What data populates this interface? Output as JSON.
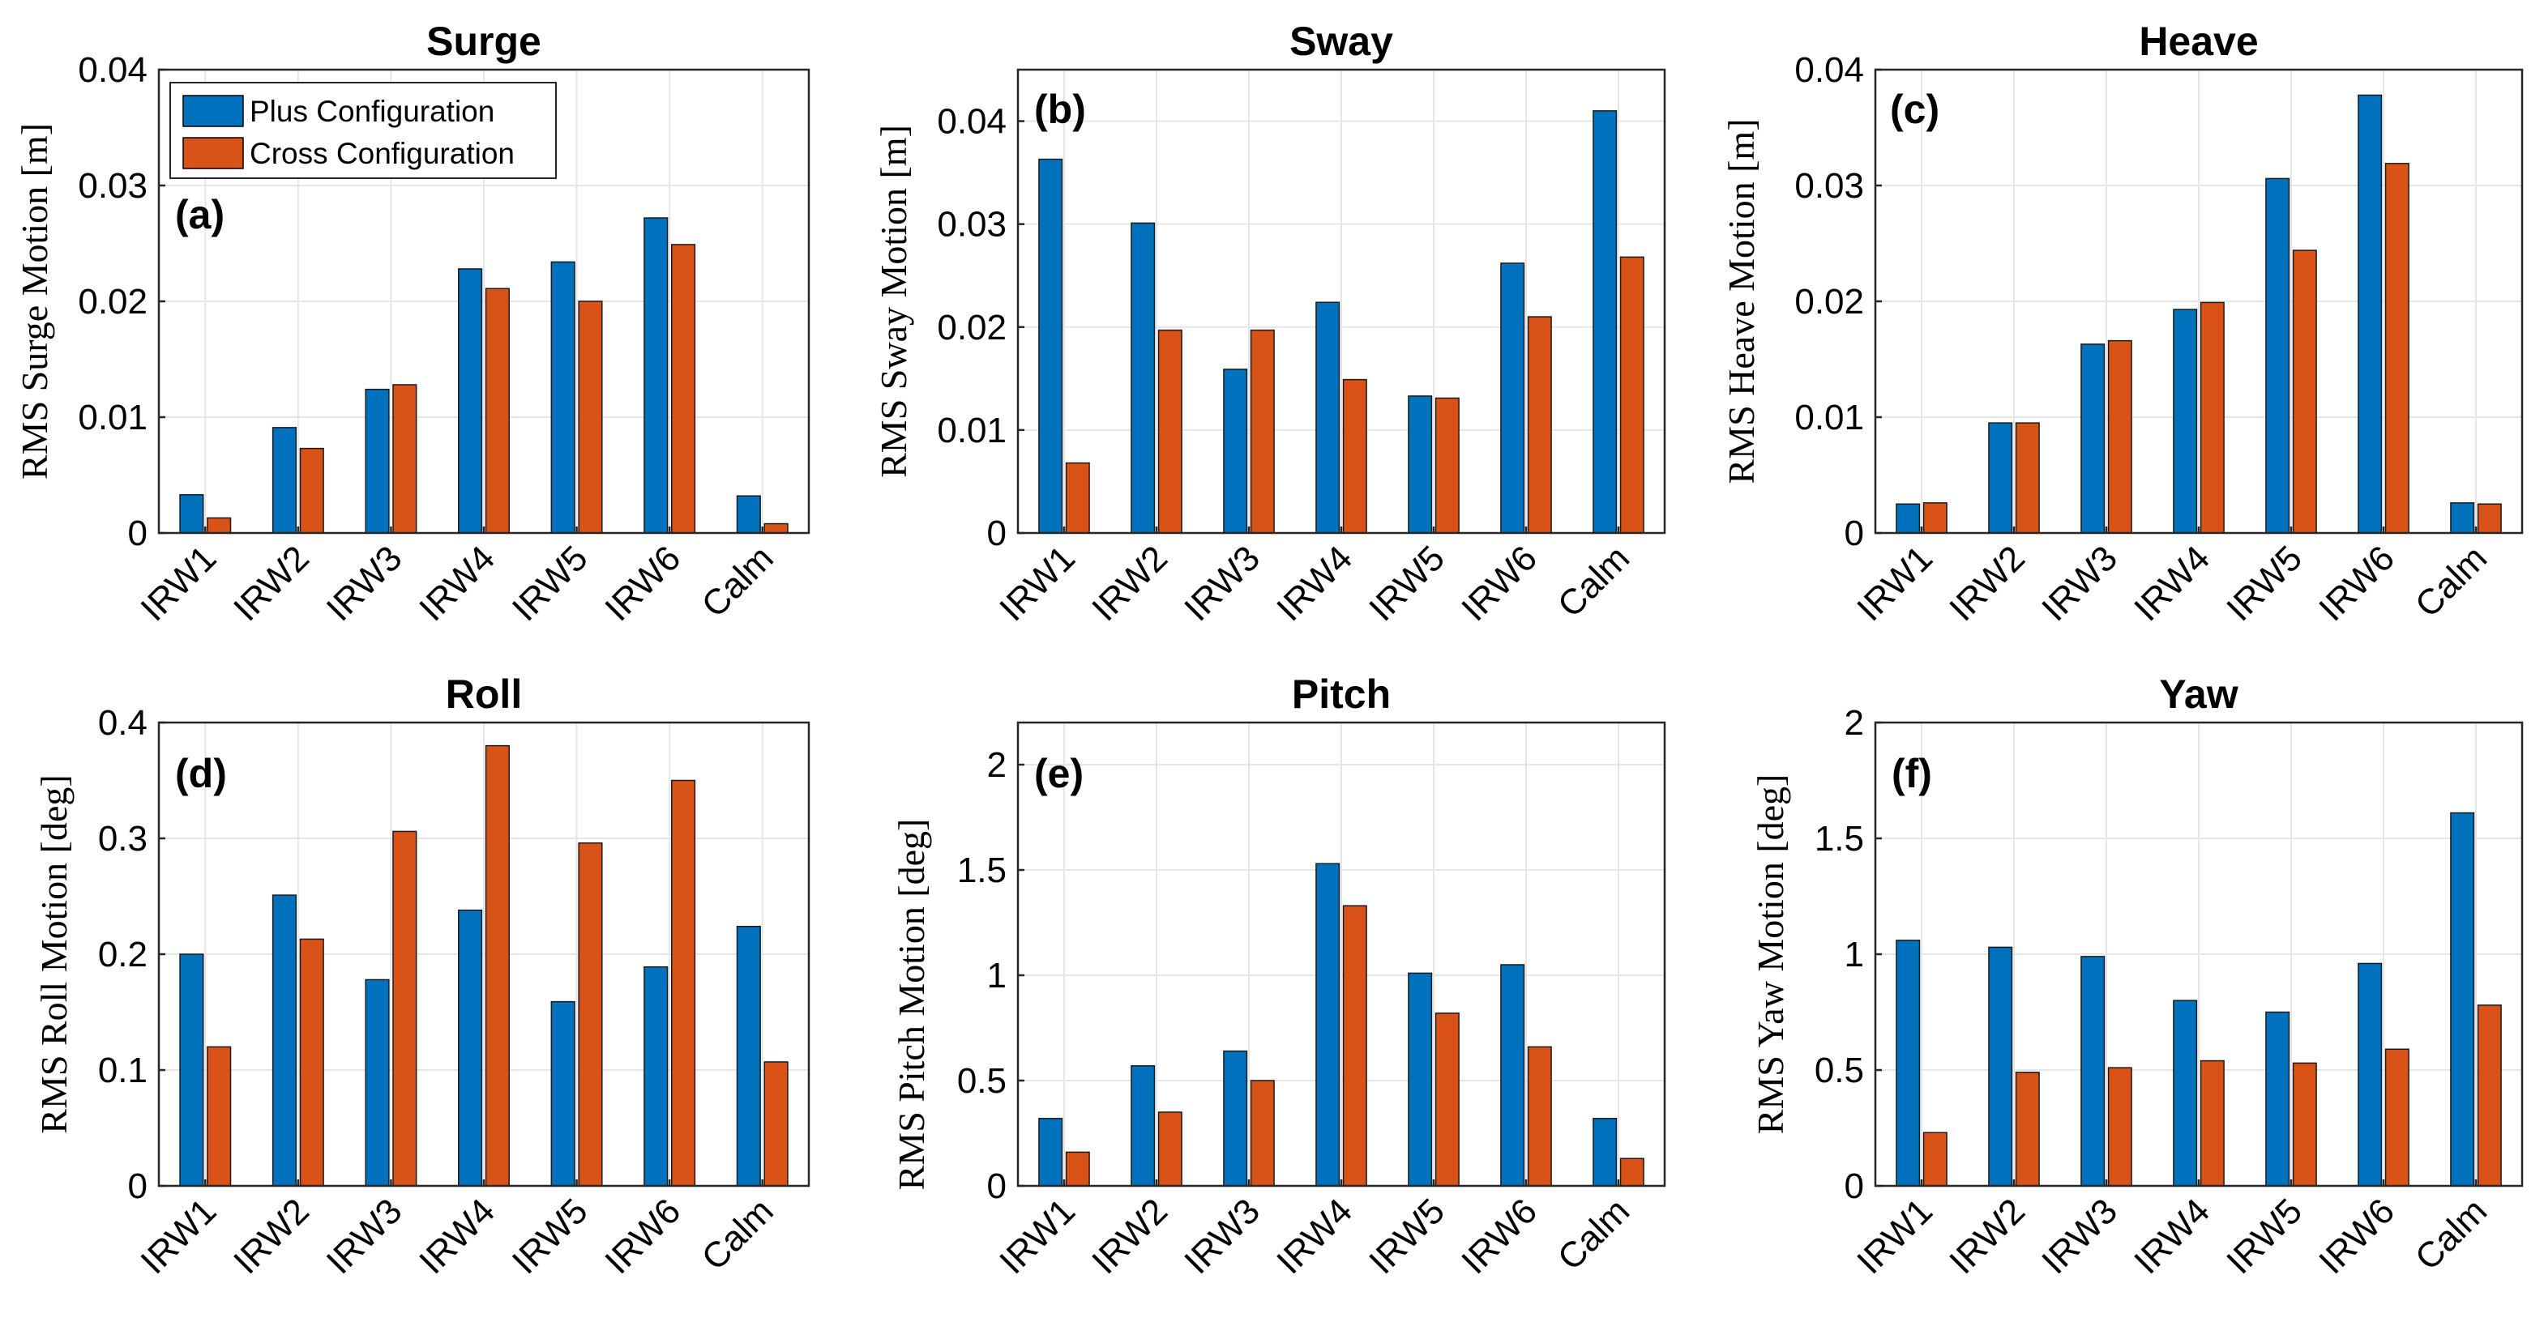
{
  "chart_data": [
    {
      "type": "bar",
      "title": "Surge",
      "panel_label": "(a)",
      "ylabel": "RMS Surge Motion [m]",
      "categories": [
        "IRW1",
        "IRW2",
        "IRW3",
        "IRW4",
        "IRW5",
        "IRW6",
        "Calm"
      ],
      "ylim": [
        0,
        0.04
      ],
      "yticks": [
        0,
        0.01,
        0.02,
        0.03,
        0.04
      ],
      "ytick_labels": [
        "0",
        "0.01",
        "0.02",
        "0.03",
        "0.04"
      ],
      "series": [
        {
          "name": "Plus Configuration",
          "values": [
            0.0033,
            0.0091,
            0.0124,
            0.0228,
            0.0234,
            0.0272,
            0.0032
          ]
        },
        {
          "name": "Cross Configuration",
          "values": [
            0.0013,
            0.0073,
            0.0128,
            0.0211,
            0.02,
            0.0249,
            0.0008
          ]
        }
      ],
      "legend": {
        "location": "top-left",
        "entries": [
          "Plus Configuration",
          "Cross Configuration"
        ]
      }
    },
    {
      "type": "bar",
      "title": "Sway",
      "panel_label": "(b)",
      "ylabel": "RMS Sway Motion [m]",
      "categories": [
        "IRW1",
        "IRW2",
        "IRW3",
        "IRW4",
        "IRW5",
        "IRW6",
        "Calm"
      ],
      "ylim": [
        0,
        0.045
      ],
      "yticks": [
        0,
        0.01,
        0.02,
        0.03,
        0.04
      ],
      "ytick_labels": [
        "0",
        "0.01",
        "0.02",
        "0.03",
        "0.04"
      ],
      "series": [
        {
          "name": "Plus Configuration",
          "values": [
            0.0363,
            0.0301,
            0.0159,
            0.0224,
            0.0133,
            0.0262,
            0.041
          ]
        },
        {
          "name": "Cross Configuration",
          "values": [
            0.0068,
            0.0197,
            0.0197,
            0.0149,
            0.0131,
            0.021,
            0.0268
          ]
        }
      ]
    },
    {
      "type": "bar",
      "title": "Heave",
      "panel_label": "(c)",
      "ylabel": "RMS Heave Motion [m]",
      "categories": [
        "IRW1",
        "IRW2",
        "IRW3",
        "IRW4",
        "IRW5",
        "IRW6",
        "Calm"
      ],
      "ylim": [
        0,
        0.04
      ],
      "yticks": [
        0,
        0.01,
        0.02,
        0.03,
        0.04
      ],
      "ytick_labels": [
        "0",
        "0.01",
        "0.02",
        "0.03",
        "0.04"
      ],
      "series": [
        {
          "name": "Plus Configuration",
          "values": [
            0.0025,
            0.0095,
            0.0163,
            0.0193,
            0.0306,
            0.0378,
            0.0026
          ]
        },
        {
          "name": "Cross Configuration",
          "values": [
            0.0026,
            0.0095,
            0.0166,
            0.0199,
            0.0244,
            0.0319,
            0.0025
          ]
        }
      ]
    },
    {
      "type": "bar",
      "title": "Roll",
      "panel_label": "(d)",
      "ylabel": "RMS Roll Motion [deg]",
      "categories": [
        "IRW1",
        "IRW2",
        "IRW3",
        "IRW4",
        "IRW5",
        "IRW6",
        "Calm"
      ],
      "ylim": [
        0,
        0.4
      ],
      "yticks": [
        0,
        0.1,
        0.2,
        0.3,
        0.4
      ],
      "ytick_labels": [
        "0",
        "0.1",
        "0.2",
        "0.3",
        "0.4"
      ],
      "series": [
        {
          "name": "Plus Configuration",
          "values": [
            0.2,
            0.251,
            0.178,
            0.238,
            0.159,
            0.189,
            0.224
          ]
        },
        {
          "name": "Cross Configuration",
          "values": [
            0.12,
            0.213,
            0.306,
            0.38,
            0.296,
            0.35,
            0.107
          ]
        }
      ]
    },
    {
      "type": "bar",
      "title": "Pitch",
      "panel_label": "(e)",
      "ylabel": "RMS Pitch Motion [deg]",
      "categories": [
        "IRW1",
        "IRW2",
        "IRW3",
        "IRW4",
        "IRW5",
        "IRW6",
        "Calm"
      ],
      "ylim": [
        0,
        2.2
      ],
      "yticks": [
        0,
        0.5,
        1,
        1.5,
        2
      ],
      "ytick_labels": [
        "0",
        "0.5",
        "1",
        "1.5",
        "2"
      ],
      "series": [
        {
          "name": "Plus Configuration",
          "values": [
            0.32,
            0.57,
            0.64,
            1.53,
            1.01,
            1.05,
            0.32
          ]
        },
        {
          "name": "Cross Configuration",
          "values": [
            0.16,
            0.35,
            0.5,
            1.33,
            0.82,
            0.66,
            0.13
          ]
        }
      ]
    },
    {
      "type": "bar",
      "title": "Yaw",
      "panel_label": "(f)",
      "ylabel": "RMS Yaw Motion [deg]",
      "categories": [
        "IRW1",
        "IRW2",
        "IRW3",
        "IRW4",
        "IRW5",
        "IRW6",
        "Calm"
      ],
      "ylim": [
        0,
        2
      ],
      "yticks": [
        0,
        0.5,
        1,
        1.5,
        2
      ],
      "ytick_labels": [
        "0",
        "0.5",
        "1",
        "1.5",
        "2"
      ],
      "series": [
        {
          "name": "Plus Configuration",
          "values": [
            1.06,
            1.03,
            0.99,
            0.8,
            0.75,
            0.96,
            1.61
          ]
        },
        {
          "name": "Cross Configuration",
          "values": [
            0.23,
            0.49,
            0.51,
            0.54,
            0.53,
            0.59,
            0.78
          ]
        }
      ]
    }
  ],
  "colors": {
    "plus": "#0072BD",
    "cross": "#D95319"
  }
}
